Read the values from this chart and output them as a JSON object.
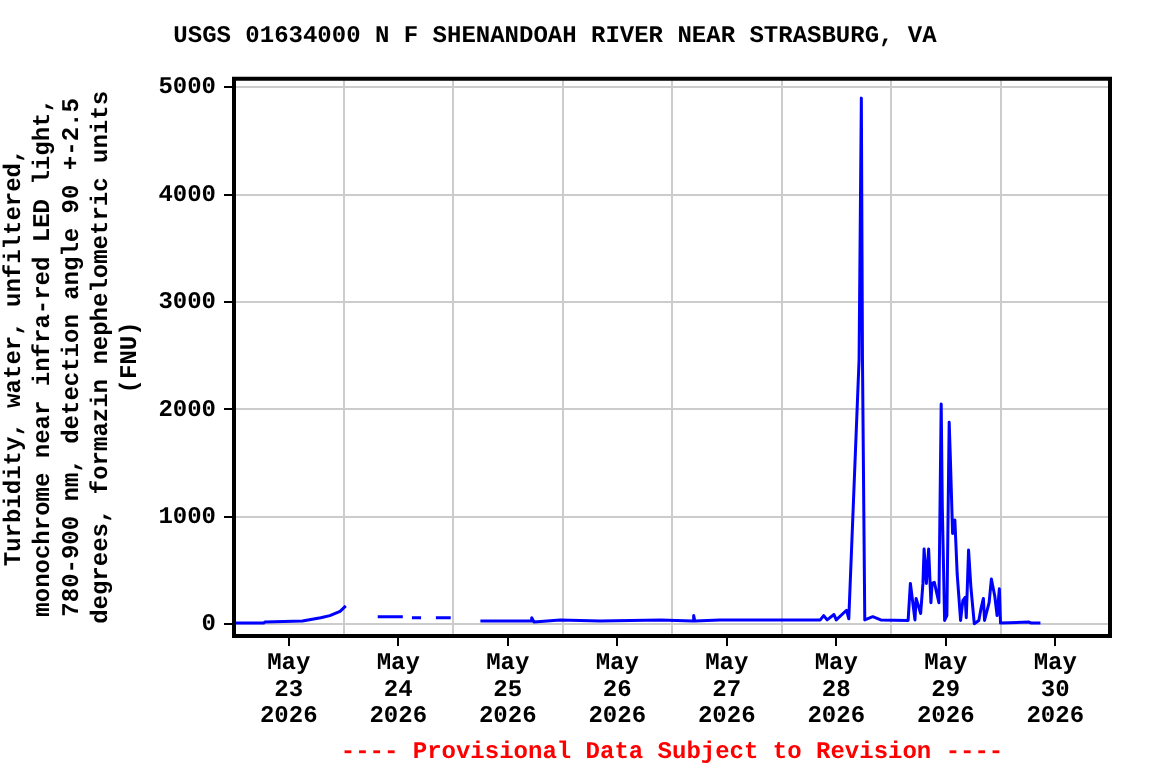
{
  "chart_data": {
    "type": "line",
    "title": "USGS 01634000 N F SHENANDOAH RIVER NEAR STRASBURG, VA",
    "ylabel": "Turbidity, water, unfiltered, monochrome near infra-red LED light, 780-900 nm, detection angle 90 +-2.5 degrees, formazin nephelometric units (FNU)",
    "annotations": [
      "---- Provisional Data Subject to Revision ----"
    ],
    "x": [
      "2026-05-23T00:00",
      "2026-05-23T06:30",
      "2026-05-23T06:45",
      "2026-05-23T15:00",
      "2026-05-23T19:00",
      "2026-05-23T21:00",
      "2026-05-23T23:15",
      "2026-05-24T00:30",
      "2026-05-24T03:00",
      "2026-05-24T07:30",
      "2026-05-24T13:00",
      "2026-05-24T14:30",
      "2026-05-24T15:00",
      "2026-05-24T17:00",
      "2026-05-24T18:00",
      "2026-05-24T20:15",
      "2026-05-24T23:30",
      "2026-05-25T02:30",
      "2026-05-25T06:00",
      "2026-05-25T17:00",
      "2026-05-25T17:15",
      "2026-05-25T17:45",
      "2026-05-25T23:30",
      "2026-05-26T08:15",
      "2026-05-26T21:30",
      "2026-05-27T04:30",
      "2026-05-27T04:45",
      "2026-05-27T05:00",
      "2026-05-27T10:30",
      "2026-05-27T23:45",
      "2026-05-28T08:30",
      "2026-05-28T09:15",
      "2026-05-28T10:00",
      "2026-05-28T11:30",
      "2026-05-28T12:00",
      "2026-05-28T14:15",
      "2026-05-28T14:45",
      "2026-05-28T17:00",
      "2026-05-28T17:30",
      "2026-05-28T17:45",
      "2026-05-28T18:15",
      "2026-05-28T20:00",
      "2026-05-28T21:45",
      "2026-05-29T03:45",
      "2026-05-29T04:15",
      "2026-05-29T05:15",
      "2026-05-29T05:30",
      "2026-05-29T06:30",
      "2026-05-29T07:00",
      "2026-05-29T07:15",
      "2026-05-29T07:45",
      "2026-05-29T08:15",
      "2026-05-29T08:45",
      "2026-05-29T09:00",
      "2026-05-29T09:30",
      "2026-05-29T10:30",
      "2026-05-29T11:00",
      "2026-05-29T11:15",
      "2026-05-29T11:45",
      "2026-05-29T12:15",
      "2026-05-29T12:45",
      "2026-05-29T13:00",
      "2026-05-29T13:30",
      "2026-05-29T14:00",
      "2026-05-29T14:30",
      "2026-05-29T15:15",
      "2026-05-29T15:45",
      "2026-05-29T16:15",
      "2026-05-29T16:30",
      "2026-05-29T17:00",
      "2026-05-29T17:30",
      "2026-05-29T18:15",
      "2026-05-29T19:15",
      "2026-05-29T19:45",
      "2026-05-29T20:15",
      "2026-05-29T20:30",
      "2026-05-29T21:30",
      "2026-05-29T22:00",
      "2026-05-29T22:45",
      "2026-05-29T23:15",
      "2026-05-29T23:45",
      "2026-05-30T00:00",
      "2026-05-30T06:15",
      "2026-05-30T06:45",
      "2026-05-30T08:45"
    ],
    "series": [
      {
        "color": "#0000ff",
        "values": [
          10,
          10,
          20,
          30,
          60,
          80,
          120,
          170,
          null,
          70,
          70,
          null,
          60,
          60,
          null,
          60,
          60,
          null,
          30,
          30,
          60,
          20,
          40,
          30,
          40,
          30,
          80,
          30,
          40,
          40,
          40,
          80,
          40,
          90,
          40,
          130,
          50,
          2460,
          4900,
          2460,
          40,
          70,
          40,
          35,
          380,
          40,
          240,
          100,
          380,
          700,
          380,
          700,
          200,
          380,
          390,
          200,
          2050,
          1080,
          35,
          80,
          1880,
          1560,
          845,
          970,
          470,
          35,
          220,
          250,
          60,
          690,
          350,
          5,
          35,
          150,
          240,
          35,
          200,
          420,
          260,
          80,
          330,
          10,
          20,
          10,
          10
        ]
      }
    ],
    "xlim": [
      "2026-05-23",
      "2026-05-31"
    ],
    "xticks": [
      {
        "value": "2026-05-23T12:00",
        "label": "May 23 2026"
      },
      {
        "value": "2026-05-24",
        "label": null
      },
      {
        "value": "2026-05-24T12:00",
        "label": "May 24 2026"
      },
      {
        "value": "2026-05-25",
        "label": null
      },
      {
        "value": "2026-05-25T12:00",
        "label": "May 25 2026"
      },
      {
        "value": "2026-05-26",
        "label": null
      },
      {
        "value": "2026-05-26T12:00",
        "label": "May 26 2026"
      },
      {
        "value": "2026-05-27",
        "label": null
      },
      {
        "value": "2026-05-27T12:00",
        "label": "May 27 2026"
      },
      {
        "value": "2026-05-28",
        "label": null
      },
      {
        "value": "2026-05-28T12:00",
        "label": "May 28 2026"
      },
      {
        "value": "2026-05-29",
        "label": null
      },
      {
        "value": "2026-05-29T12:00",
        "label": "May 29 2026"
      },
      {
        "value": "2026-05-30",
        "label": null
      },
      {
        "value": "2026-05-30T12:00",
        "label": "May 30 2026"
      }
    ],
    "ylim": [
      -110,
      5080
    ],
    "yticks": [
      0,
      1000,
      2000,
      3000,
      4000,
      5000
    ],
    "grid": true,
    "legend": false,
    "marker": "none",
    "line_style": "solid"
  }
}
